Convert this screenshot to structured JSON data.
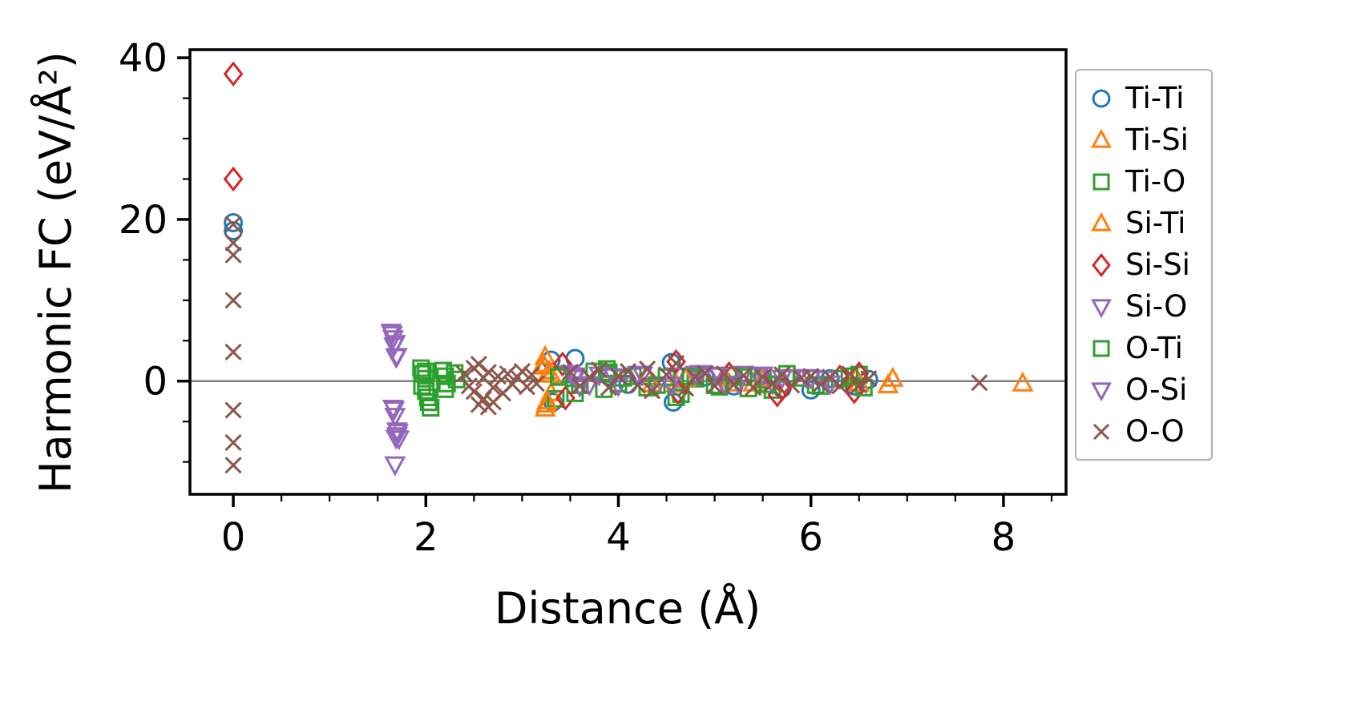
{
  "figure": {
    "background": "#ffffff",
    "spine_color": "#000000",
    "text_color": "#000000"
  },
  "chart_data": {
    "type": "scatter",
    "title": "",
    "xlabel": "Distance (Å)",
    "ylabel": "Harmonic FC (eV/Å²)",
    "xlim": [
      -0.45,
      8.65
    ],
    "ylim": [
      -14,
      41
    ],
    "xticks": [
      0,
      2,
      4,
      6,
      8
    ],
    "yticks": [
      0,
      20,
      40
    ],
    "x_minor_step": 0.5,
    "y_minor_step": 5,
    "grid": false,
    "zero_line": {
      "y": 0,
      "color": "#808080"
    },
    "legend_position": "right-outside",
    "series": [
      {
        "name": "Ti-Ti",
        "marker": "circle",
        "color": "#1f77b4",
        "points": [
          [
            0,
            19.6
          ],
          [
            0,
            18.6
          ],
          [
            3.3,
            2.6
          ],
          [
            3.32,
            -2.6
          ],
          [
            3.55,
            2.8
          ],
          [
            3.9,
            0.6
          ],
          [
            4.1,
            -0.4
          ],
          [
            4.55,
            2.3
          ],
          [
            4.57,
            -2.6
          ],
          [
            4.9,
            0.5
          ],
          [
            5.2,
            -0.6
          ],
          [
            5.5,
            0.4
          ],
          [
            5.7,
            -0.9
          ],
          [
            6.0,
            -1.1
          ],
          [
            6.2,
            0.3
          ],
          [
            6.45,
            -0.6
          ],
          [
            6.6,
            0.2
          ]
        ]
      },
      {
        "name": "Ti-Si",
        "marker": "triangle-up",
        "color": "#ff7f0e",
        "points": [
          [
            3.22,
            2.1
          ],
          [
            3.24,
            3.0
          ],
          [
            3.25,
            -2.9
          ],
          [
            3.24,
            -3.4
          ],
          [
            3.28,
            1.2
          ],
          [
            3.3,
            -1.5
          ],
          [
            4.3,
            0.5
          ],
          [
            4.6,
            -0.4
          ],
          [
            5.1,
            0.4
          ],
          [
            5.4,
            -0.3
          ],
          [
            6.47,
            0.4
          ],
          [
            6.8,
            -0.5
          ],
          [
            8.2,
            -0.3
          ]
        ]
      },
      {
        "name": "Ti-O",
        "marker": "square",
        "color": "#2ca02c",
        "points": [
          [
            1.95,
            1.6
          ],
          [
            1.97,
            0.9
          ],
          [
            2.0,
            0.3
          ],
          [
            2.0,
            -1.2
          ],
          [
            2.02,
            -2.0
          ],
          [
            2.05,
            -3.3
          ],
          [
            2.18,
            1.3
          ],
          [
            2.2,
            0.6
          ],
          [
            2.22,
            -0.3
          ],
          [
            2.3,
            1.0
          ],
          [
            2.32,
            0.2
          ],
          [
            3.35,
            -2.2
          ],
          [
            3.4,
            0.8
          ],
          [
            3.6,
            -0.5
          ],
          [
            3.75,
            1.2
          ],
          [
            3.85,
            -1.0
          ],
          [
            3.88,
            1.5
          ],
          [
            3.9,
            0.9
          ],
          [
            4.0,
            -0.3
          ],
          [
            4.15,
            0.6
          ],
          [
            4.3,
            -0.8
          ],
          [
            4.5,
            0.5
          ],
          [
            4.65,
            -1.6
          ],
          [
            4.8,
            0.3
          ],
          [
            5.0,
            -0.5
          ],
          [
            5.2,
            0.7
          ],
          [
            5.35,
            -0.9
          ],
          [
            5.5,
            0.2
          ],
          [
            5.6,
            -1.1
          ],
          [
            5.9,
            0.4
          ],
          [
            6.1,
            -0.6
          ],
          [
            6.3,
            0.3
          ],
          [
            6.5,
            0.8
          ]
        ]
      },
      {
        "name": "Si-Ti",
        "marker": "triangle-up",
        "color": "#ff7f0e",
        "points": [
          [
            3.23,
            1.8
          ],
          [
            3.26,
            -2.5
          ],
          [
            3.3,
            0.8
          ],
          [
            4.35,
            -0.4
          ],
          [
            4.7,
            0.3
          ],
          [
            5.15,
            -0.3
          ],
          [
            5.5,
            0.3
          ],
          [
            6.5,
            -0.3
          ],
          [
            6.85,
            0.3
          ]
        ]
      },
      {
        "name": "Si-Si",
        "marker": "diamond",
        "color": "#d62728",
        "points": [
          [
            0,
            38
          ],
          [
            0,
            25
          ],
          [
            3.42,
            2.1
          ],
          [
            3.45,
            -2.1
          ],
          [
            4.6,
            2.4
          ],
          [
            4.62,
            -1.4
          ],
          [
            5.15,
            0.9
          ],
          [
            5.65,
            -1.7
          ],
          [
            5.7,
            -1.0
          ],
          [
            6.3,
            0.5
          ],
          [
            6.45,
            -1.3
          ],
          [
            6.5,
            0.9
          ]
        ]
      },
      {
        "name": "Si-O",
        "marker": "triangle-down",
        "color": "#9467bd",
        "points": [
          [
            1.64,
            6.1
          ],
          [
            1.66,
            5.3
          ],
          [
            1.68,
            4.7
          ],
          [
            1.7,
            3.1
          ],
          [
            1.66,
            -3.3
          ],
          [
            1.68,
            -4.3
          ],
          [
            1.7,
            -6.1
          ],
          [
            1.7,
            -6.7
          ],
          [
            1.72,
            -7.1
          ],
          [
            1.68,
            -10.3
          ],
          [
            3.5,
            1.0
          ],
          [
            3.55,
            0.4
          ],
          [
            3.6,
            -0.6
          ],
          [
            3.8,
            0.8
          ],
          [
            4.0,
            -0.5
          ],
          [
            4.2,
            0.9
          ],
          [
            4.4,
            -0.6
          ],
          [
            4.6,
            0.7
          ],
          [
            4.85,
            1.0
          ],
          [
            5.0,
            0.8
          ],
          [
            5.1,
            -0.4
          ],
          [
            5.3,
            0.9
          ],
          [
            5.45,
            0.7
          ],
          [
            5.6,
            -0.3
          ],
          [
            5.8,
            0.5
          ],
          [
            6.0,
            0.4
          ],
          [
            6.2,
            -0.3
          ]
        ]
      },
      {
        "name": "O-Ti",
        "marker": "square",
        "color": "#2ca02c",
        "points": [
          [
            1.96,
            -0.6
          ],
          [
            2.0,
            1.2
          ],
          [
            2.03,
            -2.6
          ],
          [
            2.2,
            -1.0
          ],
          [
            3.38,
            0.5
          ],
          [
            3.55,
            -1.5
          ],
          [
            3.9,
            1.1
          ],
          [
            4.05,
            0.4
          ],
          [
            4.4,
            -0.5
          ],
          [
            4.6,
            -2.0
          ],
          [
            4.75,
            0.6
          ],
          [
            5.05,
            -0.7
          ],
          [
            5.3,
            0.5
          ],
          [
            5.55,
            -0.4
          ],
          [
            5.75,
            0.9
          ],
          [
            6.05,
            -0.5
          ],
          [
            6.4,
            0.6
          ],
          [
            6.55,
            -0.8
          ]
        ]
      },
      {
        "name": "O-Si",
        "marker": "triangle-down",
        "color": "#9467bd",
        "points": [
          [
            1.65,
            5.8
          ],
          [
            1.67,
            4.4
          ],
          [
            1.69,
            3.0
          ],
          [
            1.67,
            -3.5
          ],
          [
            1.71,
            -6.3
          ],
          [
            1.69,
            -7.0
          ],
          [
            3.55,
            0.7
          ],
          [
            3.7,
            -0.4
          ],
          [
            3.95,
            0.6
          ],
          [
            4.25,
            0.8
          ],
          [
            4.55,
            -0.5
          ],
          [
            4.8,
            0.9
          ],
          [
            5.05,
            0.7
          ],
          [
            5.25,
            -0.3
          ],
          [
            5.5,
            0.8
          ],
          [
            5.7,
            0.4
          ],
          [
            5.95,
            0.5
          ],
          [
            6.15,
            0.3
          ]
        ]
      },
      {
        "name": "O-O",
        "marker": "x",
        "color": "#8c564b",
        "points": [
          [
            0,
            19.4
          ],
          [
            0,
            17.1
          ],
          [
            0,
            15.6
          ],
          [
            0,
            10.0
          ],
          [
            0,
            3.6
          ],
          [
            0,
            -3.6
          ],
          [
            0,
            -7.6
          ],
          [
            0,
            -10.4
          ],
          [
            2.4,
            0.9
          ],
          [
            2.45,
            -0.6
          ],
          [
            2.5,
            1.6
          ],
          [
            2.5,
            -1.3
          ],
          [
            2.55,
            2.1
          ],
          [
            2.55,
            -2.9
          ],
          [
            2.6,
            0.4
          ],
          [
            2.6,
            -2.2
          ],
          [
            2.65,
            1.1
          ],
          [
            2.65,
            -3.2
          ],
          [
            2.7,
            -0.8
          ],
          [
            2.7,
            -2.6
          ],
          [
            2.75,
            0.6
          ],
          [
            2.8,
            -1.5
          ],
          [
            2.85,
            0.9
          ],
          [
            2.9,
            -0.4
          ],
          [
            2.95,
            0.5
          ],
          [
            3.0,
            1.2
          ],
          [
            3.05,
            -0.7
          ],
          [
            3.1,
            0.8
          ],
          [
            3.15,
            -0.3
          ],
          [
            3.5,
            1.1
          ],
          [
            3.6,
            -0.6
          ],
          [
            3.7,
            0.5
          ],
          [
            3.8,
            1.4
          ],
          [
            3.9,
            -0.8
          ],
          [
            4.0,
            0.6
          ],
          [
            4.1,
            1.2
          ],
          [
            4.2,
            -0.5
          ],
          [
            4.3,
            1.5
          ],
          [
            4.35,
            -1.2
          ],
          [
            4.5,
            0.8
          ],
          [
            4.6,
            2.2
          ],
          [
            4.7,
            -0.9
          ],
          [
            4.8,
            0.5
          ],
          [
            4.9,
            1.0
          ],
          [
            5.0,
            -0.6
          ],
          [
            5.1,
            0.9
          ],
          [
            5.2,
            -0.4
          ],
          [
            5.3,
            0.7
          ],
          [
            5.4,
            -0.8
          ],
          [
            5.5,
            0.5
          ],
          [
            5.6,
            -0.3
          ],
          [
            5.7,
            0.8
          ],
          [
            5.8,
            -0.5
          ],
          [
            5.9,
            0.4
          ],
          [
            6.0,
            0.6
          ],
          [
            6.1,
            -0.4
          ],
          [
            6.2,
            0.5
          ],
          [
            6.3,
            -0.6
          ],
          [
            6.4,
            0.9
          ],
          [
            6.5,
            -0.5
          ],
          [
            6.6,
            0.3
          ],
          [
            7.75,
            -0.2
          ]
        ]
      }
    ],
    "legend_labels": [
      "Ti-Ti",
      "Ti-Si",
      "Ti-O",
      "Si-Ti",
      "Si-Si",
      "Si-O",
      "O-Ti",
      "O-Si",
      "O-O"
    ]
  }
}
